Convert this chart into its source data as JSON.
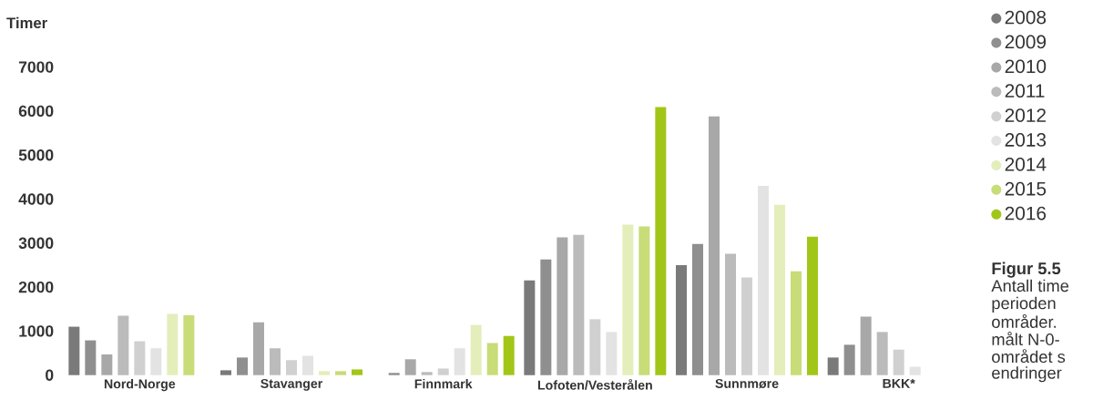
{
  "chart_data": {
    "type": "bar",
    "ylabel": "Timer",
    "categories": [
      "Nord-Norge",
      "Stavanger",
      "Finnmark",
      "Lofoten/Vesterålen",
      "Sunnmøre",
      "BKK*"
    ],
    "series": [
      {
        "name": "2008",
        "color": "#7a7a7a",
        "values": [
          1100,
          110,
          null,
          2150,
          2500,
          400
        ]
      },
      {
        "name": "2009",
        "color": "#8f8f8f",
        "values": [
          790,
          400,
          50,
          2630,
          2980,
          690
        ]
      },
      {
        "name": "2010",
        "color": "#a8a8a8",
        "values": [
          470,
          1200,
          360,
          3130,
          5880,
          1330
        ]
      },
      {
        "name": "2011",
        "color": "#bbbbbb",
        "values": [
          1350,
          610,
          70,
          3190,
          2760,
          980
        ]
      },
      {
        "name": "2012",
        "color": "#d0d0d0",
        "values": [
          770,
          340,
          150,
          1270,
          2220,
          580
        ]
      },
      {
        "name": "2013",
        "color": "#e3e3e3",
        "values": [
          610,
          440,
          610,
          980,
          4300,
          190
        ]
      },
      {
        "name": "2014",
        "color": "#e3eebb",
        "values": [
          1390,
          90,
          1140,
          3420,
          3870,
          null
        ]
      },
      {
        "name": "2015",
        "color": "#c8dc78",
        "values": [
          1360,
          90,
          730,
          3380,
          2360,
          null
        ]
      },
      {
        "name": "2016",
        "color": "#a2c617",
        "values": [
          null,
          130,
          890,
          6090,
          3145,
          null
        ]
      }
    ],
    "ylim": [
      0,
      7000
    ],
    "yticks": [
      0,
      1000,
      2000,
      3000,
      4000,
      5000,
      6000,
      7000
    ],
    "legend": "right",
    "annotations": [
      "Figur 5.5",
      "Antall time",
      "perioden",
      "områder.",
      "målt N-0-",
      "området s",
      "endringer"
    ]
  }
}
